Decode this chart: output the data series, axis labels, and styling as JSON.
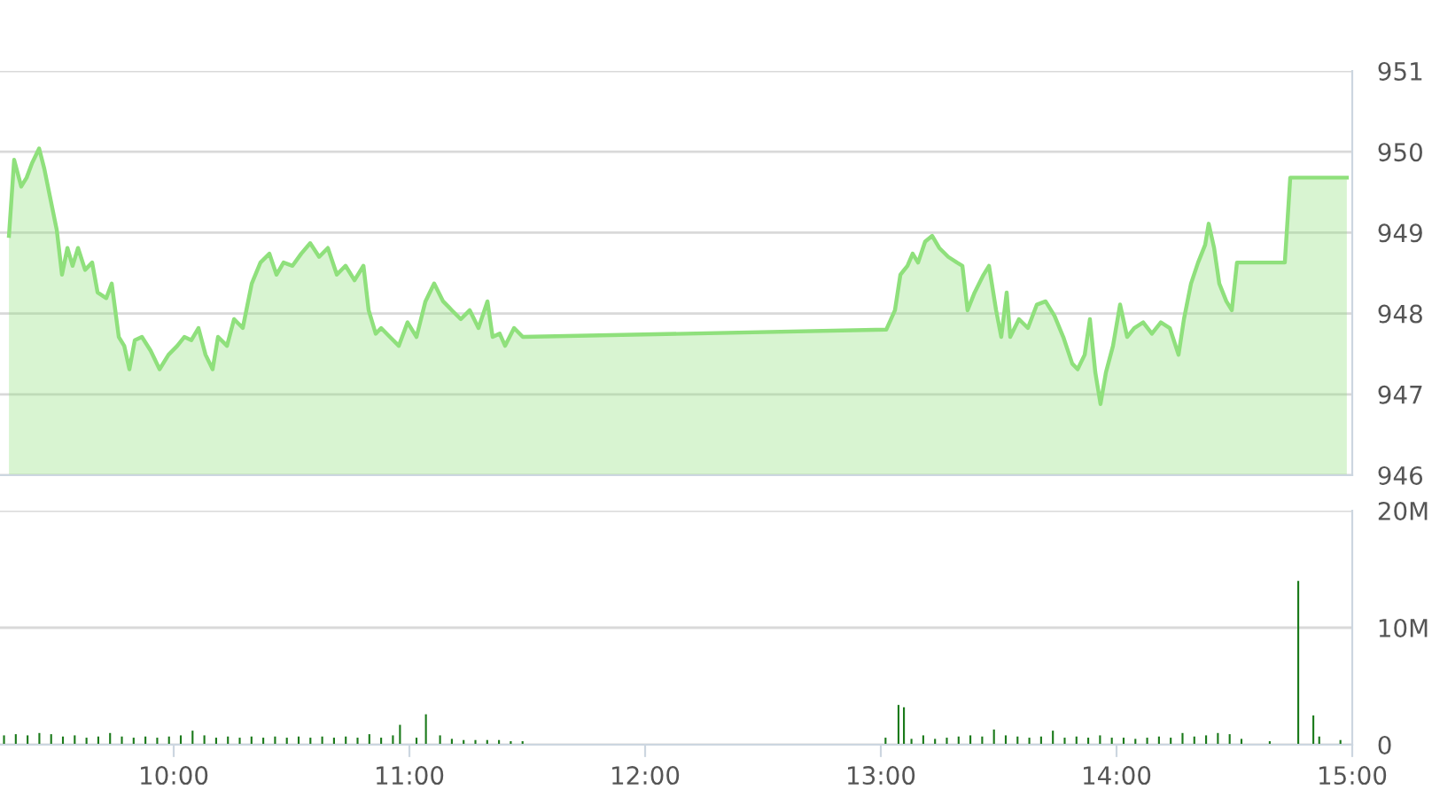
{
  "chart_data": [
    {
      "type": "area",
      "xlim": [
        9.263,
        15.0
      ],
      "ylim": [
        946,
        951
      ],
      "yticks": [
        946,
        947,
        948,
        949,
        950,
        951
      ],
      "grid": "y",
      "tick_labels": "y",
      "legend": false,
      "marker": "none",
      "line_style": "solid",
      "series": [
        {
          "color": "#8fe07c",
          "x": [
            9.301,
            9.323,
            9.353,
            9.376,
            9.399,
            9.429,
            9.451,
            9.474,
            9.504,
            9.526,
            9.549,
            9.571,
            9.594,
            9.624,
            9.654,
            9.677,
            9.714,
            9.737,
            9.767,
            9.79,
            9.812,
            9.835,
            9.865,
            9.902,
            9.94,
            9.978,
            10.015,
            10.045,
            10.075,
            10.105,
            10.135,
            10.165,
            10.188,
            10.226,
            10.256,
            10.293,
            10.331,
            10.368,
            10.406,
            10.436,
            10.466,
            10.504,
            10.541,
            10.579,
            10.617,
            10.654,
            10.692,
            10.729,
            10.767,
            10.805,
            10.827,
            10.857,
            10.88,
            10.917,
            10.955,
            10.992,
            11.03,
            11.068,
            11.105,
            11.143,
            11.18,
            11.218,
            11.256,
            11.293,
            11.331,
            11.353,
            11.383,
            11.406,
            11.444,
            11.481,
            13.023,
            13.06,
            13.083,
            13.113,
            13.135,
            13.158,
            13.188,
            13.218,
            13.248,
            13.286,
            13.323,
            13.346,
            13.368,
            13.398,
            13.436,
            13.459,
            13.489,
            13.511,
            13.534,
            13.549,
            13.586,
            13.624,
            13.662,
            13.699,
            13.737,
            13.774,
            13.812,
            13.835,
            13.865,
            13.887,
            13.91,
            13.932,
            13.955,
            13.985,
            14.015,
            14.045,
            14.075,
            14.113,
            14.15,
            14.188,
            14.226,
            14.263,
            14.286,
            14.316,
            14.346,
            14.376,
            14.391,
            14.414,
            14.436,
            14.466,
            14.489,
            14.511,
            14.714,
            14.737,
            14.977
          ],
          "values": [
            948.96,
            949.9,
            949.57,
            949.68,
            949.86,
            950.04,
            949.79,
            949.46,
            949.03,
            948.48,
            948.81,
            948.59,
            948.81,
            948.54,
            948.63,
            948.26,
            948.19,
            948.37,
            947.71,
            947.6,
            947.31,
            947.67,
            947.71,
            947.54,
            947.31,
            947.49,
            947.6,
            947.71,
            947.67,
            947.82,
            947.49,
            947.31,
            947.71,
            947.6,
            947.93,
            947.82,
            948.37,
            948.63,
            948.74,
            948.48,
            948.63,
            948.59,
            948.74,
            948.87,
            948.7,
            948.81,
            948.48,
            948.59,
            948.41,
            948.59,
            948.04,
            947.75,
            947.82,
            947.71,
            947.6,
            947.89,
            947.71,
            948.15,
            948.37,
            948.15,
            948.04,
            947.93,
            948.04,
            947.82,
            948.15,
            947.71,
            947.75,
            947.6,
            947.82,
            947.71,
            947.8,
            948.04,
            948.48,
            948.59,
            948.74,
            948.63,
            948.89,
            948.96,
            948.81,
            948.7,
            948.63,
            948.59,
            948.04,
            948.26,
            948.48,
            948.59,
            948.04,
            947.71,
            948.26,
            947.71,
            947.93,
            947.82,
            948.11,
            948.15,
            947.97,
            947.71,
            947.38,
            947.31,
            947.49,
            947.93,
            947.27,
            946.88,
            947.27,
            947.6,
            948.11,
            947.71,
            947.82,
            947.89,
            947.75,
            947.89,
            947.82,
            947.49,
            947.93,
            948.37,
            948.63,
            948.85,
            949.11,
            948.81,
            948.37,
            948.15,
            948.04,
            948.63,
            948.63,
            949.68,
            949.68
          ]
        }
      ]
    },
    {
      "type": "bar",
      "xlim": [
        9.263,
        15.0
      ],
      "ylim": [
        0,
        20
      ],
      "yticks": [
        0,
        {
          "value": 10,
          "label": "10M"
        },
        {
          "value": 20,
          "label": "20M"
        }
      ],
      "xticks": [
        {
          "value": 10,
          "label": "10:00"
        },
        {
          "value": 11,
          "label": "11:00"
        },
        {
          "value": 12,
          "label": "12:00"
        },
        {
          "value": 13,
          "label": "13:00"
        },
        {
          "value": 14,
          "label": "14:00"
        },
        {
          "value": 15,
          "label": "15:00"
        }
      ],
      "grid": "y",
      "legend": false,
      "series": [
        {
          "color": "#1b7a1b",
          "x": [
            9.28,
            9.33,
            9.38,
            9.43,
            9.48,
            9.53,
            9.58,
            9.63,
            9.68,
            9.73,
            9.78,
            9.83,
            9.88,
            9.93,
            9.98,
            10.03,
            10.08,
            10.13,
            10.18,
            10.23,
            10.28,
            10.33,
            10.38,
            10.43,
            10.48,
            10.53,
            10.58,
            10.63,
            10.68,
            10.73,
            10.78,
            10.83,
            10.88,
            10.93,
            10.96,
            11.03,
            11.07,
            11.13,
            11.18,
            11.23,
            11.28,
            11.33,
            11.38,
            11.43,
            11.48,
            13.02,
            13.075,
            13.098,
            13.13,
            13.18,
            13.23,
            13.28,
            13.33,
            13.38,
            13.43,
            13.48,
            13.53,
            13.58,
            13.63,
            13.68,
            13.73,
            13.78,
            13.83,
            13.88,
            13.93,
            13.98,
            14.03,
            14.08,
            14.13,
            14.18,
            14.23,
            14.28,
            14.33,
            14.38,
            14.43,
            14.48,
            14.53,
            14.65,
            14.771,
            14.835,
            14.86,
            14.95
          ],
          "values": [
            0.8,
            0.9,
            0.8,
            1.0,
            0.9,
            0.7,
            0.8,
            0.6,
            0.7,
            1.0,
            0.7,
            0.6,
            0.7,
            0.6,
            0.7,
            0.8,
            1.2,
            0.8,
            0.6,
            0.7,
            0.6,
            0.7,
            0.6,
            0.7,
            0.6,
            0.7,
            0.6,
            0.7,
            0.6,
            0.7,
            0.6,
            0.9,
            0.6,
            0.8,
            1.7,
            0.6,
            2.6,
            0.8,
            0.5,
            0.4,
            0.4,
            0.4,
            0.4,
            0.3,
            0.3,
            0.6,
            3.4,
            3.2,
            0.5,
            0.8,
            0.5,
            0.6,
            0.7,
            0.8,
            0.7,
            1.3,
            0.8,
            0.7,
            0.6,
            0.7,
            1.2,
            0.6,
            0.7,
            0.6,
            0.8,
            0.6,
            0.6,
            0.5,
            0.6,
            0.7,
            0.6,
            1.0,
            0.7,
            0.8,
            1.0,
            0.9,
            0.5,
            0.3,
            14,
            2.5,
            0.7,
            0.4
          ]
        }
      ]
    }
  ]
}
